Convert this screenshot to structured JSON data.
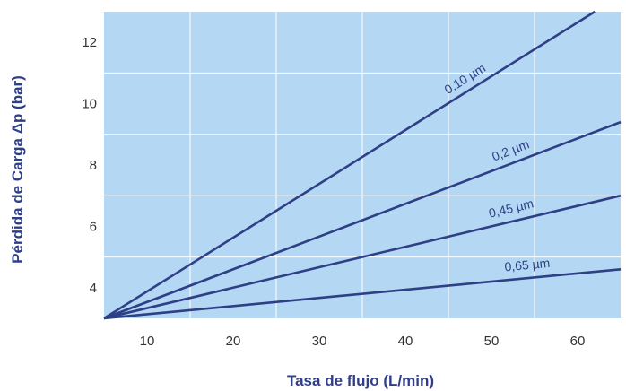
{
  "chart_data": {
    "type": "line",
    "xlabel": "Tasa de flujo (L/min)",
    "ylabel": "Pérdida de Carga Δp (bar)",
    "xlim": [
      5,
      65
    ],
    "ylim": [
      3,
      13
    ],
    "x_ticks": [
      "10",
      "20",
      "30",
      "40",
      "50",
      "60"
    ],
    "y_ticks": [
      "4",
      "6",
      "8",
      "10",
      "12"
    ],
    "grid": true,
    "colors": {
      "plot_bg": "#b4d7f4",
      "grid": "#ffffff",
      "line": "#2f3f86"
    },
    "series": [
      {
        "name": "0,10 µm",
        "x": [
          5,
          62
        ],
        "y": [
          3.0,
          13.0
        ]
      },
      {
        "name": "0,2 µm",
        "x": [
          5,
          65
        ],
        "y": [
          3.0,
          9.4
        ]
      },
      {
        "name": "0,45 µm",
        "x": [
          5,
          65
        ],
        "y": [
          3.0,
          7.0
        ]
      },
      {
        "name": "0,65 µm",
        "x": [
          5,
          65
        ],
        "y": [
          3.0,
          4.6
        ]
      }
    ]
  }
}
